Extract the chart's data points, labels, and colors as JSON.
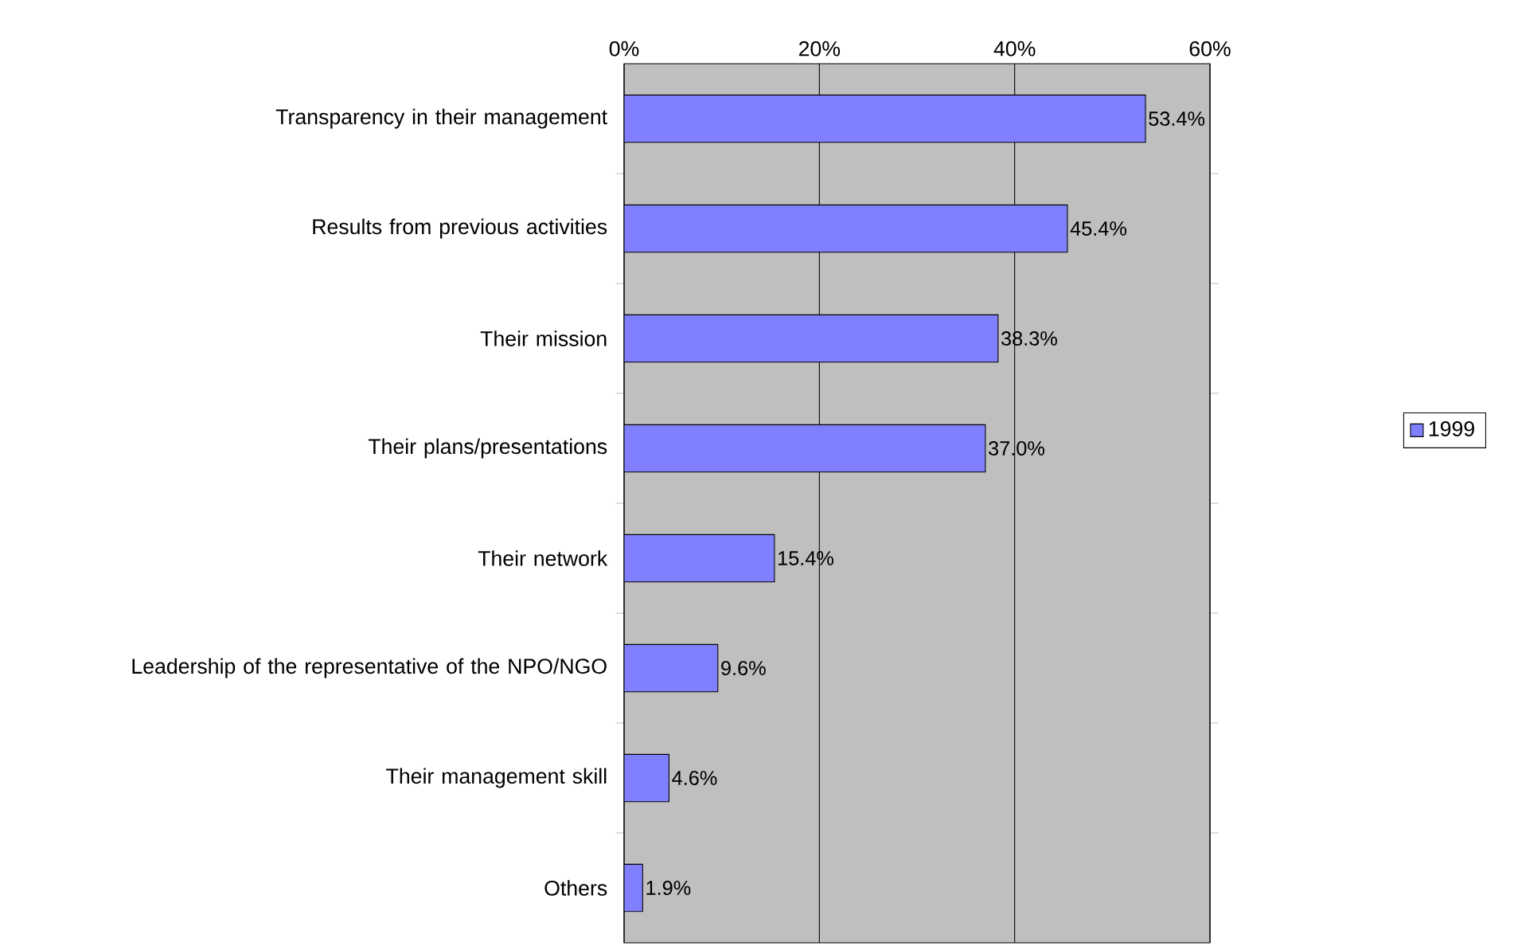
{
  "chart_data": {
    "type": "bar",
    "orientation": "horizontal",
    "categories": [
      "Transparency in their management",
      "Results from previous activities",
      "Their mission",
      "Their plans/presentations",
      "Their network",
      "Leadership of the representative of the NPO/NGO",
      "Their management skill",
      "Others"
    ],
    "series": [
      {
        "name": "1999",
        "color": "#8080ff",
        "values": [
          53.4,
          45.4,
          38.3,
          37.0,
          15.4,
          9.6,
          4.6,
          1.9
        ],
        "value_labels": [
          "53.4%",
          "45.4%",
          "38.3%",
          "37.0%",
          "15.4%",
          "9.6%",
          "4.6%",
          "1.9%"
        ]
      }
    ],
    "xlim": [
      0,
      60
    ],
    "xticks": [
      {
        "value": 0,
        "label": "0%"
      },
      {
        "value": 20,
        "label": "20%"
      },
      {
        "value": 40,
        "label": "40%"
      },
      {
        "value": 60,
        "label": "60%"
      }
    ],
    "grid": "x",
    "legend": "right"
  }
}
